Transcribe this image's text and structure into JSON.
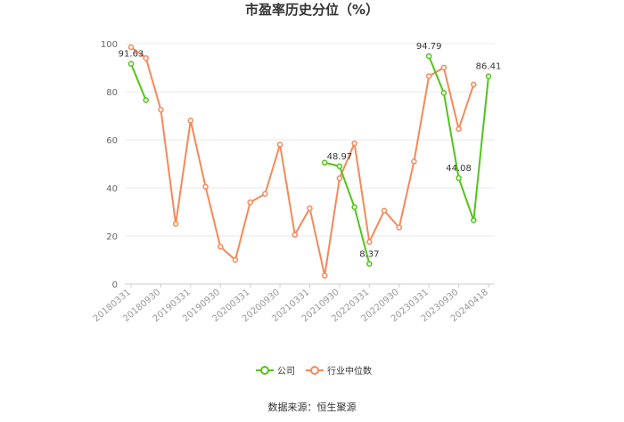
{
  "chart_data": {
    "type": "line",
    "title": "市盈率历史分位（%）",
    "xlabel": "",
    "ylabel": "",
    "ylim": [
      0,
      100
    ],
    "yticks": [
      0,
      20,
      40,
      60,
      80,
      100
    ],
    "x": [
      "20180331",
      "20180630",
      "20180930",
      "20181231",
      "20190331",
      "20190630",
      "20190930",
      "20191231",
      "20200331",
      "20200630",
      "20200930",
      "20201231",
      "20210331",
      "20210630",
      "20210930",
      "20211231",
      "20220331",
      "20220630",
      "20220930",
      "20221231",
      "20230331",
      "20230630",
      "20230930",
      "20231231",
      "20240418"
    ],
    "x_tick_labels": [
      "20180331",
      "20180930",
      "20190331",
      "20190930",
      "20200331",
      "20200930",
      "20210331",
      "20210930",
      "20220331",
      "20220930",
      "20230331",
      "20230930",
      "20240418"
    ],
    "series": [
      {
        "name": "公司",
        "color": "#52c41a",
        "values": [
          91.63,
          76.5,
          null,
          null,
          null,
          null,
          null,
          null,
          null,
          null,
          null,
          null,
          null,
          50.5,
          48.97,
          32,
          8.37,
          null,
          null,
          null,
          94.79,
          79.5,
          44.08,
          26.5,
          86.41
        ]
      },
      {
        "name": "行业中位数",
        "color": "#f5895a",
        "values": [
          98.5,
          94,
          72.5,
          25,
          68,
          40.5,
          15.5,
          10,
          34,
          37.5,
          58,
          20.5,
          31.5,
          3.5,
          44,
          58.5,
          17.5,
          30.5,
          23.5,
          51,
          86.5,
          90,
          64.5,
          83,
          null
        ]
      }
    ],
    "data_labels": [
      {
        "series": 0,
        "index": 0,
        "text": "91.63"
      },
      {
        "series": 0,
        "index": 14,
        "text": "48.97"
      },
      {
        "series": 0,
        "index": 16,
        "text": "8.37"
      },
      {
        "series": 0,
        "index": 20,
        "text": "94.79"
      },
      {
        "series": 0,
        "index": 22,
        "text": "44.08"
      },
      {
        "series": 0,
        "index": 24,
        "text": "86.41"
      }
    ],
    "grid": true,
    "legend_position": "bottom-center"
  },
  "footer": {
    "source": "数据来源：恒生聚源"
  }
}
